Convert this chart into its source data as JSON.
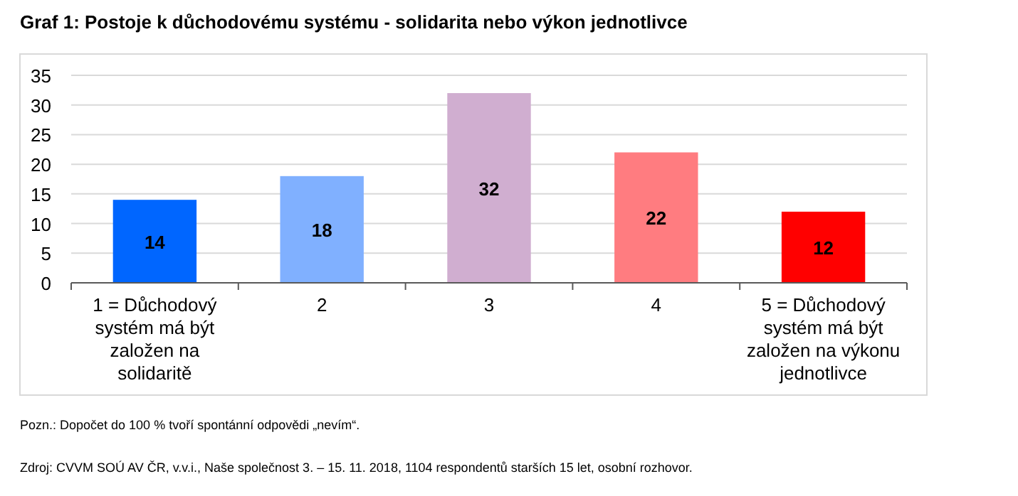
{
  "chart_data": {
    "type": "bar",
    "title": "Graf 1: Postoje k důchodovému systému - solidarita nebo výkon jednotlivce",
    "categories": [
      "1 = Důchodový systém má být založen na solidaritě",
      "2",
      "3",
      "4",
      "5 = Důchodový systém má být založen na výkonu jednotlivce"
    ],
    "values": [
      14,
      18,
      32,
      22,
      12
    ],
    "colors": [
      "#0066ff",
      "#80b0ff",
      "#d0aed0",
      "#ff7c80",
      "#ff0000"
    ],
    "ylim": [
      0,
      35
    ],
    "yticks": [
      0,
      5,
      10,
      15,
      20,
      25,
      30,
      35
    ],
    "grid": "y",
    "data_labels": true,
    "annotations": [
      "Pozn.: Dopočet do 100 % tvoří spontánní odpovědi „nevím“.",
      "Zdroj: CVVM SOÚ AV ČR, v.v.i., Naše společnost 3. – 15. 11. 2018, 1104 respondentů starších 15 let, osobní rozhovor."
    ]
  }
}
